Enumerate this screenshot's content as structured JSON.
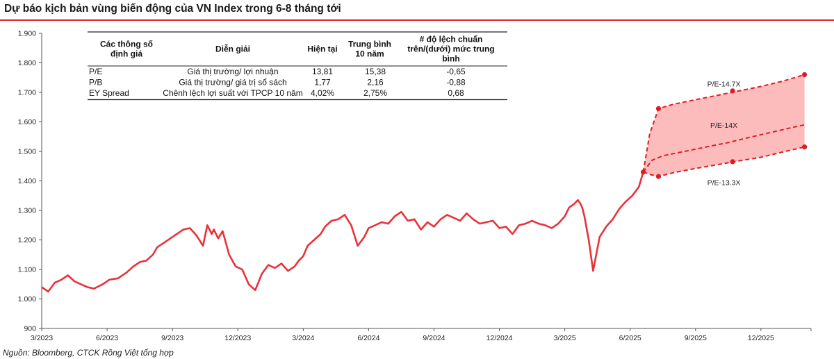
{
  "header": {
    "title": "Dự báo kịch bản vùng biến động của VN Index trong 6-8 tháng tới",
    "source": "Nguồn: Bloomberg, CTCK Rồng Việt tổng hợp"
  },
  "table": {
    "headers": [
      [
        "Các thông số",
        "định giá"
      ],
      [
        "Diễn  giải"
      ],
      [
        "Hiện tại"
      ],
      [
        "Trung bình",
        "10 năm"
      ],
      [
        "# độ lệch chuẩn",
        "trên/(dưới) mức trung",
        "bình"
      ]
    ],
    "rows": [
      [
        "P/E",
        "Giá thị trường/ lợi nhuận",
        "13,81",
        "15,38",
        "-0,65"
      ],
      [
        "P/B",
        "Giá thị trường/ giá trị sổ sách",
        "1,77",
        "2,16",
        "-0,88"
      ],
      [
        "EY Spread",
        "Chênh lệch lợi suất với TPCP 10 năm",
        "4,02%",
        "2,75%",
        "0,68"
      ]
    ]
  },
  "chart_data": {
    "type": "line",
    "title": "Dự báo kịch bản vùng biến động của VN Index trong 6-8 tháng tới",
    "xlabel": "",
    "ylabel": "",
    "ylim": [
      900,
      1900
    ],
    "y_ticks": [
      "900",
      "1.000",
      "1.100",
      "1.200",
      "1.300",
      "1.400",
      "1.500",
      "1.600",
      "1.700",
      "1.800",
      "1.900"
    ],
    "y_tick_values": [
      900,
      1000,
      1100,
      1200,
      1300,
      1400,
      1500,
      1600,
      1700,
      1800,
      1900
    ],
    "x_ticks": [
      "3/2023",
      "6/2023",
      "9/2023",
      "12/2023",
      "3/2024",
      "6/2024",
      "9/2024",
      "12/2024",
      "3/2025",
      "6/2025",
      "9/2025",
      "12/2025"
    ],
    "x_tick_months": [
      0,
      3,
      6,
      9,
      12,
      15,
      18,
      21,
      24,
      27,
      30,
      33
    ],
    "x_range_months": [
      0,
      35.3
    ],
    "grid": false,
    "line_color": "#e8323a",
    "band_color": "#fcb8b8",
    "vn_index": {
      "name": "VN Index",
      "x_months": [
        0,
        0.3,
        0.6,
        0.9,
        1.2,
        1.5,
        1.8,
        2.1,
        2.4,
        2.8,
        3.1,
        3.5,
        3.9,
        4.2,
        4.5,
        4.8,
        5.1,
        5.3,
        5.6,
        5.9,
        6.2,
        6.5,
        6.8,
        7.1,
        7.4,
        7.6,
        7.8,
        7.9,
        8.1,
        8.3,
        8.6,
        8.9,
        9.2,
        9.5,
        9.8,
        10.1,
        10.4,
        10.7,
        11.0,
        11.3,
        11.6,
        11.8,
        12.0,
        12.2,
        12.5,
        12.8,
        13.0,
        13.3,
        13.6,
        13.9,
        14.2,
        14.5,
        14.8,
        15.0,
        15.3,
        15.6,
        15.9,
        16.2,
        16.5,
        16.8,
        17.1,
        17.4,
        17.7,
        18.0,
        18.3,
        18.6,
        18.9,
        19.2,
        19.5,
        19.8,
        20.1,
        20.4,
        20.7,
        21.0,
        21.3,
        21.6,
        21.9,
        22.2,
        22.5,
        22.8,
        23.1,
        23.4,
        23.7,
        24.0,
        24.2,
        24.4,
        24.6,
        24.7,
        24.8,
        24.9,
        25.0,
        25.1,
        25.3,
        25.6,
        25.9,
        26.2,
        26.5,
        26.8,
        27.1,
        27.4,
        27.6
      ],
      "values": [
        1040,
        1025,
        1055,
        1065,
        1080,
        1060,
        1050,
        1040,
        1035,
        1050,
        1065,
        1070,
        1090,
        1110,
        1125,
        1130,
        1150,
        1175,
        1190,
        1205,
        1220,
        1235,
        1240,
        1215,
        1180,
        1250,
        1220,
        1235,
        1205,
        1230,
        1150,
        1110,
        1100,
        1050,
        1030,
        1085,
        1115,
        1105,
        1120,
        1095,
        1110,
        1130,
        1145,
        1180,
        1200,
        1220,
        1245,
        1265,
        1270,
        1285,
        1250,
        1180,
        1210,
        1240,
        1250,
        1260,
        1255,
        1280,
        1295,
        1265,
        1270,
        1235,
        1260,
        1245,
        1270,
        1285,
        1275,
        1265,
        1290,
        1270,
        1255,
        1260,
        1265,
        1240,
        1245,
        1220,
        1250,
        1255,
        1265,
        1255,
        1250,
        1240,
        1255,
        1280,
        1310,
        1320,
        1335,
        1325,
        1310,
        1280,
        1240,
        1200,
        1095,
        1210,
        1245,
        1270,
        1305,
        1330,
        1350,
        1380,
        1430
      ]
    },
    "scenarios": [
      {
        "name": "P/E-14.7X",
        "x_months": [
          27.6,
          27.9,
          28.3,
          29.0,
          30.0,
          31.0,
          32.0,
          33.0,
          34.0,
          35.0
        ],
        "values": [
          1430,
          1560,
          1645,
          1660,
          1675,
          1690,
          1705,
          1720,
          1738,
          1760
        ]
      },
      {
        "name": "P/E-14X",
        "x_months": [
          27.6,
          28.0,
          28.5,
          29.5,
          30.5,
          31.5,
          32.5,
          33.5,
          34.5,
          35.0
        ],
        "values": [
          1430,
          1470,
          1485,
          1500,
          1515,
          1530,
          1548,
          1565,
          1582,
          1590
        ]
      },
      {
        "name": "P/E-13.3X",
        "x_months": [
          27.6,
          28.0,
          28.3,
          29.0,
          30.0,
          31.0,
          32.0,
          33.0,
          34.0,
          35.0
        ],
        "values": [
          1430,
          1420,
          1415,
          1428,
          1442,
          1455,
          1468,
          1480,
          1498,
          1515
        ]
      }
    ],
    "scenario_markers": [
      {
        "series": "P/E-14.7X",
        "x_months": [
          28.3,
          31.7,
          35.0
        ],
        "values": [
          1645,
          1705,
          1760
        ]
      },
      {
        "series": "P/E-13.3X",
        "x_months": [
          27.6,
          28.3,
          31.7,
          35.0
        ],
        "values": [
          1430,
          1415,
          1465,
          1515
        ]
      }
    ]
  }
}
